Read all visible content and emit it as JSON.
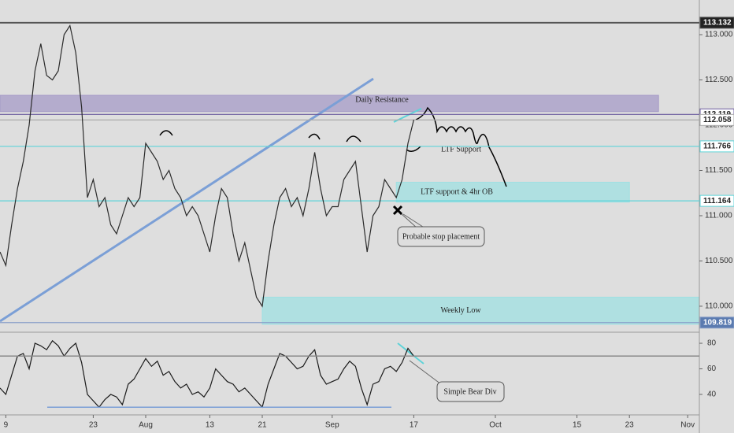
{
  "chart_data": {
    "type": "line",
    "x": [
      0,
      1,
      2,
      3,
      4,
      5,
      6,
      7,
      8,
      9,
      10,
      11,
      12,
      13,
      14,
      15,
      16,
      17,
      18,
      19,
      20,
      21,
      22,
      23,
      24,
      25,
      26,
      27,
      28,
      29,
      30,
      31,
      32,
      33,
      34,
      35,
      36,
      37,
      38,
      39,
      40,
      41,
      42,
      43,
      44,
      45,
      46,
      47,
      48,
      49,
      50,
      51,
      52,
      53,
      54,
      55,
      56,
      57,
      58,
      59,
      60,
      61,
      62,
      63,
      64,
      65,
      66,
      67,
      68,
      69,
      70,
      71
    ],
    "series": [
      {
        "color": "#2b2b2b",
        "values": [
          110.6,
          110.45,
          110.9,
          111.3,
          111.6,
          112.0,
          112.6,
          112.9,
          112.55,
          112.5,
          112.6,
          113.0,
          113.1,
          112.8,
          112.2,
          111.2,
          111.4,
          111.1,
          111.2,
          110.9,
          110.8,
          111.0,
          111.2,
          111.1,
          111.2,
          111.8,
          111.7,
          111.6,
          111.4,
          111.5,
          111.3,
          111.2,
          111.0,
          111.1,
          111.0,
          110.8,
          110.6,
          111.0,
          111.3,
          111.2,
          110.8,
          110.5,
          110.7,
          110.4,
          110.1,
          110.0,
          110.5,
          110.9,
          111.2,
          111.3,
          111.1,
          111.2,
          111.0,
          111.3,
          111.7,
          111.3,
          111.0,
          111.1,
          111.1,
          111.4,
          111.5,
          111.6,
          111.1,
          110.6,
          111.0,
          111.1,
          111.4,
          111.3,
          111.2,
          111.4,
          111.8,
          112.06
        ]
      },
      {
        "color": "#1a1a1a",
        "axis": "rsi",
        "values": [
          45,
          40,
          55,
          70,
          72,
          60,
          80,
          78,
          75,
          82,
          78,
          70,
          76,
          80,
          65,
          40,
          35,
          30,
          36,
          40,
          38,
          32,
          48,
          52,
          60,
          68,
          62,
          66,
          55,
          58,
          50,
          45,
          48,
          40,
          42,
          38,
          45,
          60,
          55,
          50,
          48,
          42,
          45,
          40,
          35,
          30,
          48,
          60,
          72,
          70,
          65,
          60,
          62,
          70,
          75,
          55,
          48,
          50,
          52,
          60,
          66,
          62,
          45,
          32,
          48,
          50,
          60,
          62,
          58,
          65,
          76,
          70
        ]
      }
    ],
    "xlim": [
      0,
      120
    ],
    "xticks": [
      {
        "value": 1,
        "label": "9"
      },
      {
        "value": 16,
        "label": "23"
      },
      {
        "value": 25,
        "label": "Aug"
      },
      {
        "value": 36,
        "label": "13"
      },
      {
        "value": 45,
        "label": "21"
      },
      {
        "value": 57,
        "label": "Sep"
      },
      {
        "value": 71,
        "label": "17"
      },
      {
        "value": 85,
        "label": "Oct"
      },
      {
        "value": 99,
        "label": "15"
      },
      {
        "value": 108,
        "label": "23"
      },
      {
        "value": 118,
        "label": "Nov"
      }
    ],
    "ylim": [
      109.73,
      113.383
    ],
    "yticks": [
      {
        "value": 110,
        "label": "110.000"
      },
      {
        "value": 110.5,
        "label": "110.500"
      },
      {
        "value": 111,
        "label": "111.000"
      },
      {
        "value": 111.5,
        "label": "111.500"
      },
      {
        "value": 112,
        "label": "112.000"
      },
      {
        "value": 112.5,
        "label": "112.500"
      },
      {
        "value": 113,
        "label": "113.000"
      }
    ],
    "rsi_ylim": [
      25.2,
      86.8
    ],
    "rsi_yticks": [
      40,
      60,
      80
    ],
    "rsi_levels": [
      {
        "value": 70,
        "color": "#888888"
      },
      {
        "value": 30,
        "color": "#7b9fd6"
      }
    ],
    "levels": [
      {
        "value": 113.132,
        "color": "#555555"
      },
      {
        "value": 112.119,
        "color": "#6a5a9e"
      },
      {
        "value": 112.058,
        "color": "#aaaaaa"
      },
      {
        "value": 111.766,
        "color": "#5fd3d8"
      },
      {
        "value": 111.164,
        "color": "#5fd3d8"
      },
      {
        "value": 109.819,
        "color": "#8a9fc8"
      }
    ],
    "zones": [
      {
        "label": "Daily Resistance",
        "x": [
          0,
          113
        ],
        "y": [
          112.15,
          112.33
        ],
        "color": "#a59bc7"
      },
      {
        "label": "LTF support & 4hr OB",
        "x": [
          68,
          108
        ],
        "y": [
          111.15,
          111.37
        ],
        "color": "#9fe0e2"
      },
      {
        "label": "Weekly Low",
        "x": [
          45,
          120
        ],
        "y": [
          109.8,
          110.1
        ],
        "color": "#9fe0e2"
      }
    ],
    "annotations": [
      "LTF Support",
      "Probable stop placement",
      "Simple Bear Div"
    ],
    "grid": false
  }
}
